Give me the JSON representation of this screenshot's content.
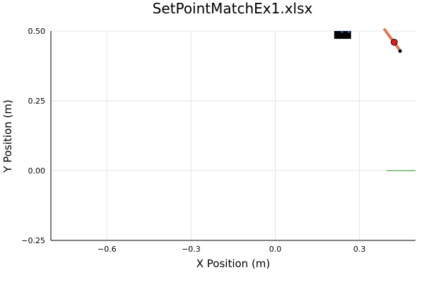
{
  "chart_data": {
    "type": "scatter",
    "title": "SetPointMatchEx1.xlsx",
    "xlabel": "X Position (m)",
    "ylabel": "Y Position (m)",
    "xlim": [
      -0.8,
      0.5
    ],
    "ylim": [
      -0.25,
      0.5
    ],
    "xticks": [
      -0.6,
      -0.3,
      0.0,
      0.3
    ],
    "xtick_labels": [
      "−0.6",
      "−0.3",
      "0.0",
      "0.3"
    ],
    "yticks": [
      -0.25,
      0.0,
      0.25,
      0.5
    ],
    "ytick_labels": [
      "−0.25",
      "0.00",
      "0.25",
      "0.50"
    ],
    "grid": true,
    "legend": "none",
    "elements": {
      "black_block": {
        "x": [
          0.21,
          0.27
        ],
        "y": [
          0.472,
          0.5
        ],
        "color": "#000000"
      },
      "blue_marks": {
        "x": [
          0.238,
          0.262
        ],
        "y": 0.497,
        "color": "#2a56c6"
      },
      "orange_line": {
        "x": [
          0.39,
          0.445
        ],
        "y": [
          0.505,
          0.43
        ],
        "color": "#e07a52"
      },
      "red_point": {
        "x": 0.424,
        "y": 0.46,
        "color": "#d61f1f"
      },
      "black_point": {
        "x": 0.445,
        "y": 0.428,
        "color": "#000000"
      },
      "green_line": {
        "x": [
          0.397,
          0.5
        ],
        "y": 0.0,
        "color": "#8fc48f"
      }
    }
  }
}
